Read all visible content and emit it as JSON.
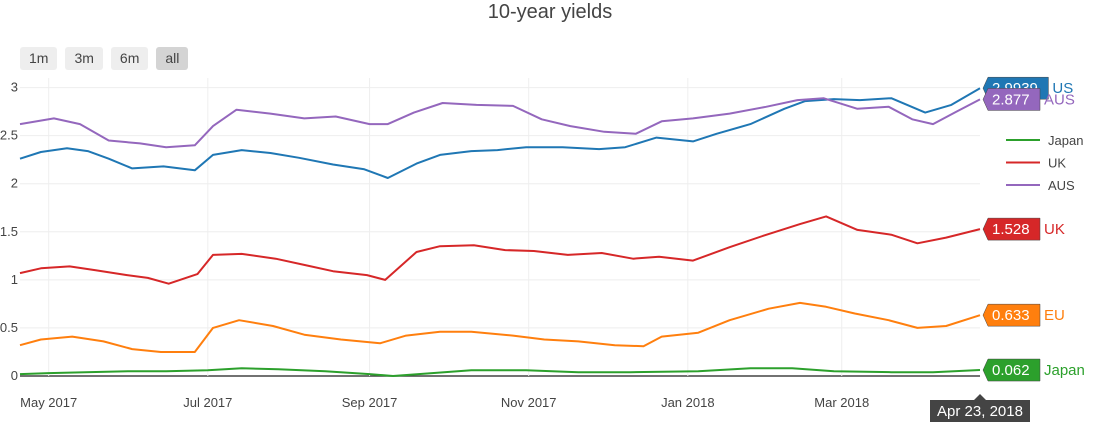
{
  "title": "10-year yields",
  "range_buttons": [
    {
      "label": "1m",
      "active": false
    },
    {
      "label": "3m",
      "active": false
    },
    {
      "label": "6m",
      "active": false
    },
    {
      "label": "all",
      "active": true
    }
  ],
  "hover_label": "Apr 23, 2018",
  "chart_data": {
    "type": "line",
    "title": "10-year yields",
    "x_range": [
      "2017-04-20",
      "2018-04-23"
    ],
    "y_range": [
      0,
      3.1
    ],
    "y_ticks": [
      0,
      0.5,
      1,
      1.5,
      2,
      2.5,
      3
    ],
    "y_tick_labels": [
      "0",
      "0.5",
      "1",
      "1.5",
      "2",
      "2.5",
      "3"
    ],
    "x_ticks": [
      {
        "date": "2017-05-01",
        "label": "May 2017"
      },
      {
        "date": "2017-07-01",
        "label": "Jul 2017"
      },
      {
        "date": "2017-09-01",
        "label": "Sep 2017"
      },
      {
        "date": "2017-11-01",
        "label": "Nov 2017"
      },
      {
        "date": "2018-01-01",
        "label": "Jan 2018"
      },
      {
        "date": "2018-03-01",
        "label": "Mar 2018"
      }
    ],
    "grid": true,
    "legend_position": "right",
    "legend": [
      "Japan",
      "UK",
      "AUS"
    ],
    "series": [
      {
        "name": "US",
        "color": "#1f77b4",
        "last_label": "2.9939",
        "points": [
          [
            "2017-04-20",
            2.26
          ],
          [
            "2017-04-28",
            2.33
          ],
          [
            "2017-05-08",
            2.37
          ],
          [
            "2017-05-16",
            2.34
          ],
          [
            "2017-05-24",
            2.26
          ],
          [
            "2017-06-02",
            2.16
          ],
          [
            "2017-06-14",
            2.18
          ],
          [
            "2017-06-26",
            2.14
          ],
          [
            "2017-07-03",
            2.3
          ],
          [
            "2017-07-14",
            2.35
          ],
          [
            "2017-07-25",
            2.32
          ],
          [
            "2017-08-05",
            2.27
          ],
          [
            "2017-08-18",
            2.2
          ],
          [
            "2017-08-30",
            2.15
          ],
          [
            "2017-09-08",
            2.06
          ],
          [
            "2017-09-19",
            2.21
          ],
          [
            "2017-09-28",
            2.3
          ],
          [
            "2017-10-10",
            2.34
          ],
          [
            "2017-10-20",
            2.35
          ],
          [
            "2017-10-31",
            2.38
          ],
          [
            "2017-11-14",
            2.38
          ],
          [
            "2017-11-28",
            2.36
          ],
          [
            "2017-12-08",
            2.38
          ],
          [
            "2017-12-20",
            2.48
          ],
          [
            "2018-01-03",
            2.44
          ],
          [
            "2018-01-12",
            2.52
          ],
          [
            "2018-01-25",
            2.62
          ],
          [
            "2018-02-07",
            2.78
          ],
          [
            "2018-02-15",
            2.86
          ],
          [
            "2018-02-26",
            2.88
          ],
          [
            "2018-03-08",
            2.87
          ],
          [
            "2018-03-20",
            2.89
          ],
          [
            "2018-04-02",
            2.74
          ],
          [
            "2018-04-12",
            2.82
          ],
          [
            "2018-04-23",
            2.9939
          ]
        ]
      },
      {
        "name": "AUS",
        "color": "#9467bd",
        "last_label": "2.877",
        "points": [
          [
            "2017-04-20",
            2.62
          ],
          [
            "2017-05-03",
            2.68
          ],
          [
            "2017-05-13",
            2.62
          ],
          [
            "2017-05-24",
            2.45
          ],
          [
            "2017-06-05",
            2.42
          ],
          [
            "2017-06-15",
            2.38
          ],
          [
            "2017-06-26",
            2.4
          ],
          [
            "2017-07-03",
            2.6
          ],
          [
            "2017-07-12",
            2.77
          ],
          [
            "2017-07-25",
            2.73
          ],
          [
            "2017-08-07",
            2.68
          ],
          [
            "2017-08-19",
            2.7
          ],
          [
            "2017-09-01",
            2.62
          ],
          [
            "2017-09-08",
            2.62
          ],
          [
            "2017-09-18",
            2.74
          ],
          [
            "2017-09-29",
            2.84
          ],
          [
            "2017-10-12",
            2.82
          ],
          [
            "2017-10-26",
            2.81
          ],
          [
            "2017-11-06",
            2.67
          ],
          [
            "2017-11-17",
            2.6
          ],
          [
            "2017-11-30",
            2.54
          ],
          [
            "2017-12-12",
            2.52
          ],
          [
            "2017-12-22",
            2.65
          ],
          [
            "2018-01-03",
            2.68
          ],
          [
            "2018-01-17",
            2.73
          ],
          [
            "2018-01-31",
            2.8
          ],
          [
            "2018-02-12",
            2.87
          ],
          [
            "2018-02-22",
            2.89
          ],
          [
            "2018-03-07",
            2.78
          ],
          [
            "2018-03-19",
            2.8
          ],
          [
            "2018-03-28",
            2.67
          ],
          [
            "2018-04-05",
            2.62
          ],
          [
            "2018-04-14",
            2.75
          ],
          [
            "2018-04-23",
            2.877
          ]
        ]
      },
      {
        "name": "UK",
        "color": "#d62728",
        "last_label": "1.528",
        "points": [
          [
            "2017-04-20",
            1.07
          ],
          [
            "2017-04-28",
            1.12
          ],
          [
            "2017-05-09",
            1.14
          ],
          [
            "2017-05-19",
            1.1
          ],
          [
            "2017-05-31",
            1.05
          ],
          [
            "2017-06-08",
            1.02
          ],
          [
            "2017-06-16",
            0.96
          ],
          [
            "2017-06-27",
            1.06
          ],
          [
            "2017-07-03",
            1.26
          ],
          [
            "2017-07-14",
            1.27
          ],
          [
            "2017-07-27",
            1.22
          ],
          [
            "2017-08-08",
            1.15
          ],
          [
            "2017-08-18",
            1.09
          ],
          [
            "2017-08-31",
            1.05
          ],
          [
            "2017-09-07",
            1.0
          ],
          [
            "2017-09-19",
            1.29
          ],
          [
            "2017-09-28",
            1.35
          ],
          [
            "2017-10-11",
            1.36
          ],
          [
            "2017-10-23",
            1.31
          ],
          [
            "2017-11-03",
            1.3
          ],
          [
            "2017-11-16",
            1.26
          ],
          [
            "2017-11-29",
            1.28
          ],
          [
            "2017-12-11",
            1.22
          ],
          [
            "2017-12-21",
            1.24
          ],
          [
            "2018-01-03",
            1.2
          ],
          [
            "2018-01-17",
            1.34
          ],
          [
            "2018-01-30",
            1.46
          ],
          [
            "2018-02-13",
            1.58
          ],
          [
            "2018-02-23",
            1.66
          ],
          [
            "2018-03-07",
            1.52
          ],
          [
            "2018-03-20",
            1.47
          ],
          [
            "2018-03-30",
            1.38
          ],
          [
            "2018-04-10",
            1.44
          ],
          [
            "2018-04-23",
            1.528
          ]
        ]
      },
      {
        "name": "EU",
        "color": "#ff7f0e",
        "last_label": "0.633",
        "points": [
          [
            "2017-04-20",
            0.32
          ],
          [
            "2017-04-28",
            0.38
          ],
          [
            "2017-05-10",
            0.41
          ],
          [
            "2017-05-22",
            0.36
          ],
          [
            "2017-06-02",
            0.28
          ],
          [
            "2017-06-13",
            0.25
          ],
          [
            "2017-06-26",
            0.25
          ],
          [
            "2017-07-03",
            0.5
          ],
          [
            "2017-07-13",
            0.58
          ],
          [
            "2017-07-26",
            0.52
          ],
          [
            "2017-08-07",
            0.43
          ],
          [
            "2017-08-21",
            0.38
          ],
          [
            "2017-09-05",
            0.34
          ],
          [
            "2017-09-15",
            0.42
          ],
          [
            "2017-09-28",
            0.46
          ],
          [
            "2017-10-10",
            0.46
          ],
          [
            "2017-10-26",
            0.42
          ],
          [
            "2017-11-07",
            0.38
          ],
          [
            "2017-11-20",
            0.36
          ],
          [
            "2017-12-04",
            0.32
          ],
          [
            "2017-12-15",
            0.31
          ],
          [
            "2017-12-22",
            0.41
          ],
          [
            "2018-01-05",
            0.45
          ],
          [
            "2018-01-17",
            0.58
          ],
          [
            "2018-02-01",
            0.7
          ],
          [
            "2018-02-13",
            0.76
          ],
          [
            "2018-02-23",
            0.72
          ],
          [
            "2018-03-06",
            0.65
          ],
          [
            "2018-03-19",
            0.58
          ],
          [
            "2018-03-30",
            0.5
          ],
          [
            "2018-04-10",
            0.52
          ],
          [
            "2018-04-23",
            0.633
          ]
        ]
      },
      {
        "name": "Japan",
        "color": "#2ca02c",
        "last_label": "0.062",
        "points": [
          [
            "2017-04-20",
            0.02
          ],
          [
            "2017-05-01",
            0.03
          ],
          [
            "2017-05-15",
            0.04
          ],
          [
            "2017-06-01",
            0.05
          ],
          [
            "2017-06-15",
            0.05
          ],
          [
            "2017-07-01",
            0.06
          ],
          [
            "2017-07-14",
            0.08
          ],
          [
            "2017-07-28",
            0.07
          ],
          [
            "2017-08-15",
            0.05
          ],
          [
            "2017-09-01",
            0.02
          ],
          [
            "2017-09-10",
            0.0
          ],
          [
            "2017-09-25",
            0.03
          ],
          [
            "2017-10-10",
            0.06
          ],
          [
            "2017-10-31",
            0.06
          ],
          [
            "2017-11-20",
            0.04
          ],
          [
            "2017-12-10",
            0.04
          ],
          [
            "2018-01-05",
            0.05
          ],
          [
            "2018-01-25",
            0.08
          ],
          [
            "2018-02-10",
            0.08
          ],
          [
            "2018-02-26",
            0.05
          ],
          [
            "2018-03-20",
            0.04
          ],
          [
            "2018-04-05",
            0.04
          ],
          [
            "2018-04-23",
            0.062
          ]
        ]
      }
    ]
  }
}
